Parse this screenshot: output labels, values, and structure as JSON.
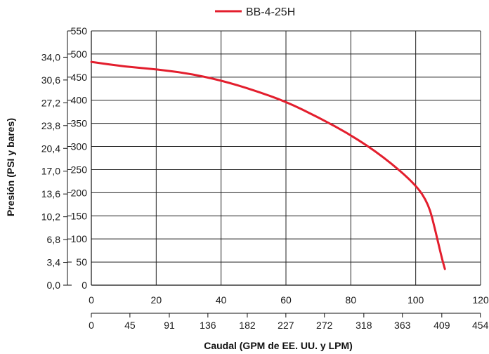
{
  "chart_data": {
    "type": "line",
    "legend_position": "top-center",
    "grid": true,
    "xlabel": "Caudal (GPM de EE. UU. y LPM)",
    "ylabel": "Presión (PSI y bares)",
    "x_gpm_ticks": [
      "0",
      "20",
      "40",
      "60",
      "80",
      "100",
      "120"
    ],
    "x_lpm_ticks": [
      "0",
      "45",
      "91",
      "136",
      "182",
      "227",
      "272",
      "318",
      "363",
      "409",
      "454"
    ],
    "y_psi_ticks": [
      "0",
      "50",
      "100",
      "150",
      "200",
      "250",
      "300",
      "350",
      "400",
      "450",
      "500",
      "550"
    ],
    "y_bar_ticks": [
      "0,0",
      "3,4",
      "6,8",
      "10,2",
      "13,6",
      "17,0",
      "20,4",
      "23,8",
      "27,2",
      "30,6",
      "34,0"
    ],
    "xlim": [
      0,
      120
    ],
    "ylim": [
      0,
      550
    ],
    "series": [
      {
        "name": "BB-4-25H",
        "color": "#e31e2d",
        "x": [
          0,
          10,
          20,
          30,
          40,
          50,
          60,
          70,
          80,
          90,
          100,
          104,
          106,
          108,
          109
        ],
        "y": [
          483,
          473,
          467,
          458,
          443,
          422,
          397,
          363,
          325,
          278,
          218,
          175,
          120,
          60,
          35
        ]
      }
    ]
  }
}
